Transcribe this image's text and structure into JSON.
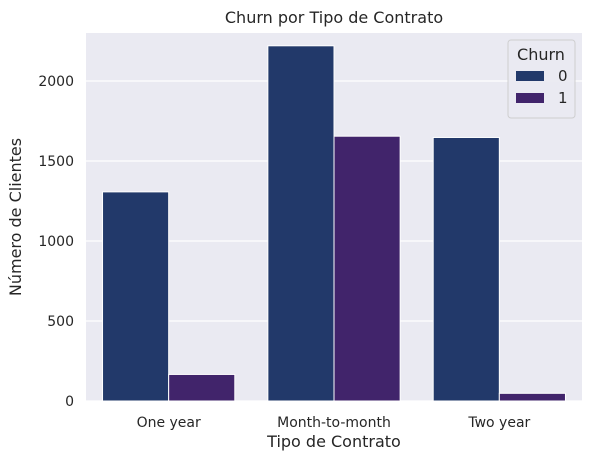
{
  "chart_data": {
    "type": "bar",
    "title": "Churn por Tipo de Contrato",
    "xlabel": "Tipo de Contrato",
    "ylabel": "Número de Clientes",
    "categories": [
      "One year",
      "Month-to-month",
      "Two year"
    ],
    "series": [
      {
        "name": "0",
        "values": [
          1307,
          2220,
          1647
        ],
        "color": "#22396a"
      },
      {
        "name": "1",
        "values": [
          166,
          1655,
          48
        ],
        "color": "#41246b"
      }
    ],
    "ylim": [
      0,
      2300
    ],
    "yticks": [
      0,
      500,
      1000,
      1500,
      2000
    ],
    "grid": true,
    "legend": {
      "title": "Churn",
      "placement": "top-right"
    }
  }
}
